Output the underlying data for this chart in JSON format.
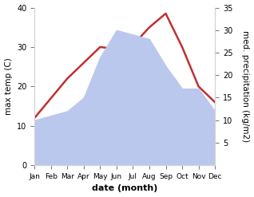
{
  "months": [
    "Jan",
    "Feb",
    "Mar",
    "Apr",
    "May",
    "Jun",
    "Jul",
    "Aug",
    "Sep",
    "Oct",
    "Nov",
    "Dec"
  ],
  "month_indices": [
    1,
    2,
    3,
    4,
    5,
    6,
    7,
    8,
    9,
    10,
    11,
    12
  ],
  "temperature": [
    12.0,
    17.0,
    22.0,
    26.0,
    30.0,
    29.5,
    30.5,
    35.0,
    38.5,
    30.0,
    20.0,
    16.0
  ],
  "precipitation": [
    10.0,
    11.0,
    12.0,
    15.0,
    24.0,
    30.0,
    29.0,
    28.0,
    22.0,
    17.0,
    17.0,
    12.0
  ],
  "temp_color": "#c03030",
  "precip_fill_color": "#bbc8ee",
  "temp_ylim": [
    0,
    40
  ],
  "precip_ylim": [
    0,
    35
  ],
  "temp_ylabel": "max temp (C)",
  "precip_ylabel": "med. precipitation (kg/m2)",
  "xlabel": "date (month)",
  "background_color": "#ffffff",
  "temp_linewidth": 1.8
}
